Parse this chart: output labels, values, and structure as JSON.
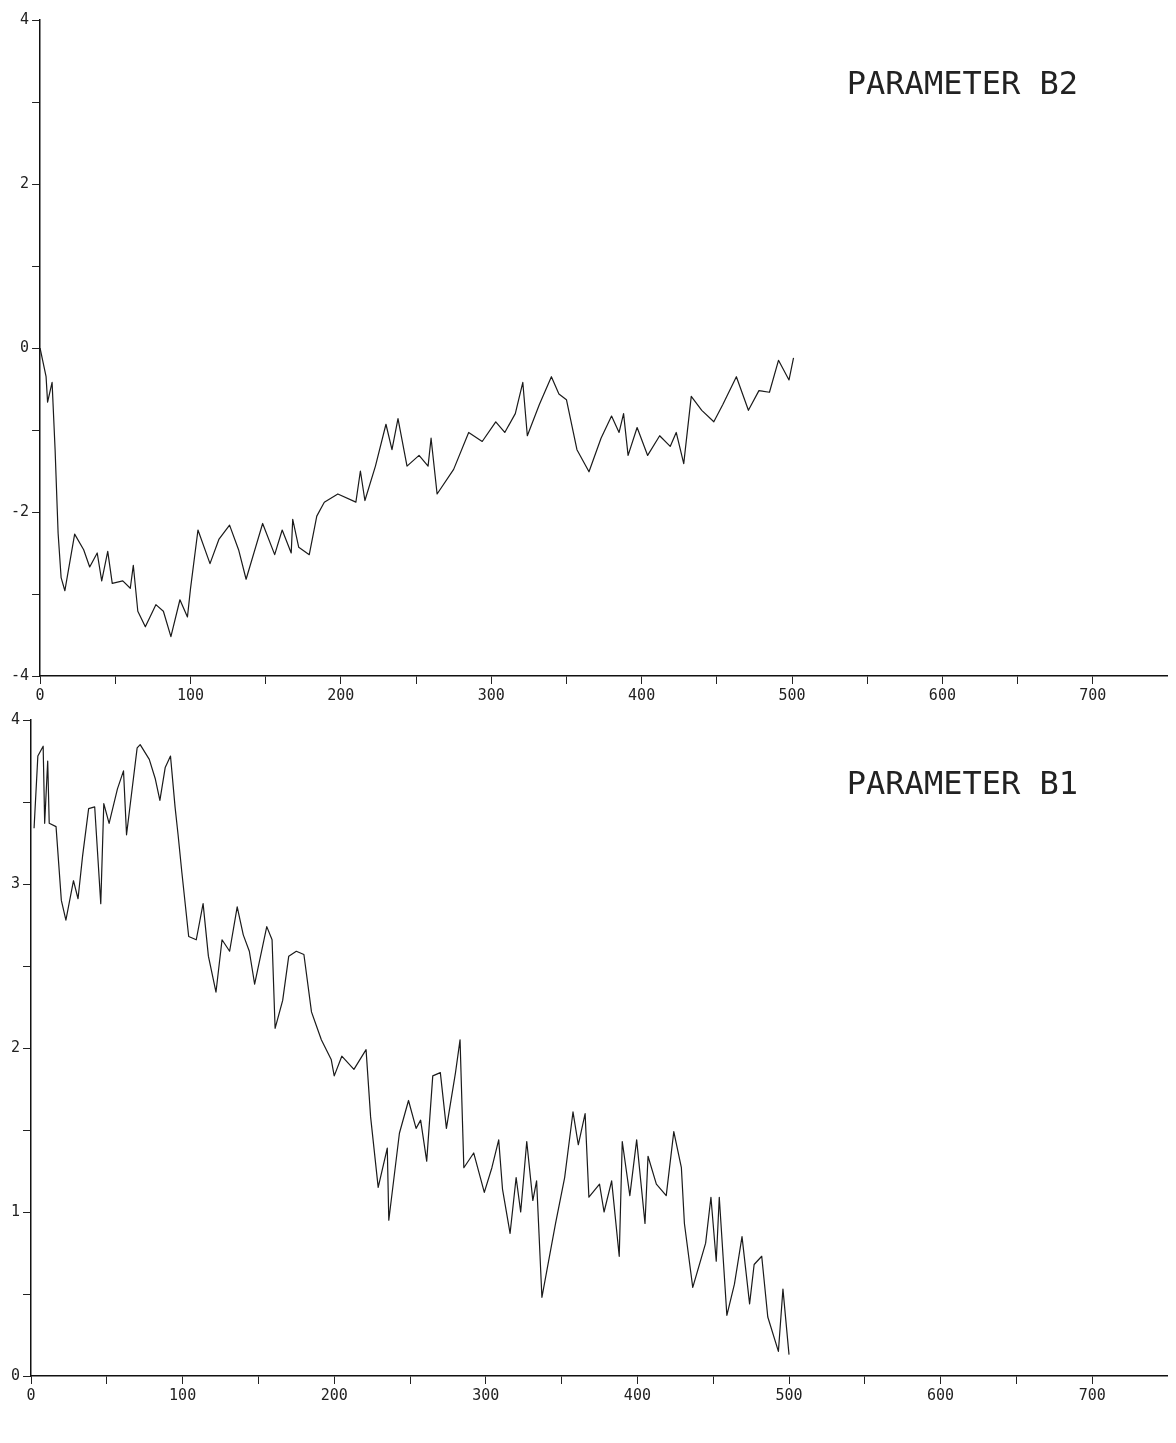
{
  "chart_data": [
    {
      "type": "line",
      "title": "PARAMETER B2",
      "xlim": [
        0,
        750
      ],
      "xticks": [
        0,
        {
          "value": 50,
          "label": null
        },
        100,
        {
          "value": 150,
          "label": null
        },
        200,
        {
          "value": 250,
          "label": null
        },
        300,
        {
          "value": 350,
          "label": null
        },
        400,
        {
          "value": 450,
          "label": null
        },
        500,
        {
          "value": 550,
          "label": null
        },
        600,
        {
          "value": 650,
          "label": null
        },
        700
      ],
      "ylim": [
        -4,
        4
      ],
      "yticks": [
        -4,
        {
          "value": -3,
          "label": null
        },
        -2,
        {
          "value": -1,
          "label": null
        },
        0,
        {
          "value": 1,
          "label": null
        },
        2,
        {
          "value": 3,
          "label": null
        },
        4
      ],
      "series": [
        {
          "color": "#1a1a1a",
          "x": [
            0,
            4,
            5,
            8,
            10,
            12,
            14,
            16.5,
            23,
            29,
            33,
            38,
            41,
            45,
            48,
            55,
            60,
            62,
            65,
            70,
            77,
            82,
            87,
            93,
            98,
            100,
            105,
            113,
            119,
            126,
            132,
            137,
            148,
            156,
            161,
            167,
            168,
            172,
            179,
            184,
            189,
            198,
            210,
            213,
            216,
            223,
            230,
            234,
            238,
            244,
            252,
            258,
            260,
            264,
            275,
            285,
            294,
            303,
            309,
            316,
            321,
            324,
            332,
            340,
            345,
            350,
            357,
            365,
            373,
            380,
            385,
            388,
            391,
            397,
            404,
            412,
            419,
            423,
            428,
            433,
            440,
            448,
            454,
            463,
            471,
            478,
            485,
            491,
            498,
            501
          ],
          "values": [
            0,
            -0.35,
            -0.66,
            -0.42,
            -1.24,
            -2.26,
            -2.8,
            -2.96,
            -2.27,
            -2.46,
            -2.67,
            -2.5,
            -2.84,
            -2.48,
            -2.87,
            -2.84,
            -2.93,
            -2.65,
            -3.21,
            -3.4,
            -3.13,
            -3.21,
            -3.52,
            -3.07,
            -3.28,
            -2.94,
            -2.22,
            -2.63,
            -2.33,
            -2.16,
            -2.46,
            -2.82,
            -2.14,
            -2.52,
            -2.22,
            -2.5,
            -2.09,
            -2.43,
            -2.52,
            -2.05,
            -1.88,
            -1.78,
            -1.88,
            -1.5,
            -1.86,
            -1.44,
            -0.93,
            -1.24,
            -0.86,
            -1.44,
            -1.31,
            -1.44,
            -1.1,
            -1.78,
            -1.48,
            -1.03,
            -1.14,
            -0.9,
            -1.03,
            -0.8,
            -0.42,
            -1.07,
            -0.69,
            -0.35,
            -0.56,
            -0.63,
            -1.24,
            -1.51,
            -1.1,
            -0.83,
            -1.03,
            -0.8,
            -1.31,
            -0.97,
            -1.31,
            -1.07,
            -1.2,
            -1.03,
            -1.41,
            -0.59,
            -0.76,
            -0.9,
            -0.69,
            -0.35,
            -0.76,
            -0.52,
            -0.54,
            -0.15,
            -0.39,
            -0.12
          ]
        }
      ]
    },
    {
      "type": "line",
      "title": "PARAMETER B1",
      "xlim": [
        0,
        750
      ],
      "xticks": [
        0,
        {
          "value": 50,
          "label": null
        },
        100,
        {
          "value": 150,
          "label": null
        },
        200,
        {
          "value": 250,
          "label": null
        },
        300,
        {
          "value": 350,
          "label": null
        },
        400,
        {
          "value": 450,
          "label": null
        },
        500,
        {
          "value": 550,
          "label": null
        },
        600,
        {
          "value": 650,
          "label": null
        },
        700
      ],
      "ylim": [
        0,
        4
      ],
      "yticks": [
        0,
        {
          "value": 0.5,
          "label": null
        },
        1,
        {
          "value": 1.5,
          "label": null
        },
        2,
        {
          "value": 2.5,
          "label": null
        },
        3,
        {
          "value": 3.5,
          "label": null
        },
        4
      ],
      "series": [
        {
          "color": "#1a1a1a",
          "x": [
            2,
            4.5,
            8,
            9,
            11,
            12,
            16.5,
            20,
            23,
            28,
            31,
            34,
            38,
            42,
            46,
            48,
            51.5,
            57,
            61,
            63,
            70,
            72,
            78,
            82,
            85,
            88.5,
            92,
            95,
            97,
            99.5,
            104,
            109,
            113.5,
            117,
            122,
            126,
            131,
            136,
            140,
            144,
            147.5,
            155.5,
            159,
            161,
            166,
            170,
            175,
            180,
            185,
            191.5,
            198,
            200,
            205,
            213,
            221,
            224,
            229,
            235,
            236,
            243,
            249,
            254,
            257,
            261,
            265,
            270,
            274,
            280,
            283,
            285.5,
            292,
            299,
            304,
            308.5,
            311,
            316,
            320,
            323,
            327,
            331,
            333.5,
            337,
            346,
            352,
            357.5,
            361,
            365.5,
            368,
            375,
            378,
            383,
            388,
            390,
            395,
            399.5,
            405,
            407,
            412.5,
            419,
            424,
            429,
            431,
            436.5,
            445,
            448.5,
            452,
            454,
            459,
            464,
            469,
            474,
            477,
            482,
            486,
            493,
            496,
            500
          ],
          "values": [
            3.34,
            3.78,
            3.84,
            3.37,
            3.75,
            3.37,
            3.35,
            2.9,
            2.78,
            3.02,
            2.91,
            3.17,
            3.46,
            3.47,
            2.88,
            3.49,
            3.37,
            3.58,
            3.69,
            3.3,
            3.83,
            3.85,
            3.76,
            3.64,
            3.51,
            3.71,
            3.78,
            3.47,
            3.3,
            3.07,
            2.68,
            2.66,
            2.88,
            2.56,
            2.34,
            2.66,
            2.59,
            2.86,
            2.69,
            2.59,
            2.39,
            2.74,
            2.66,
            2.12,
            2.29,
            2.56,
            2.59,
            2.57,
            2.22,
            2.05,
            1.93,
            1.83,
            1.95,
            1.87,
            1.99,
            1.58,
            1.15,
            1.39,
            0.95,
            1.48,
            1.68,
            1.51,
            1.56,
            1.31,
            1.83,
            1.85,
            1.51,
            1.85,
            2.05,
            1.27,
            1.36,
            1.12,
            1.27,
            1.44,
            1.14,
            0.87,
            1.21,
            1.0,
            1.43,
            1.07,
            1.19,
            0.48,
            0.93,
            1.21,
            1.61,
            1.41,
            1.6,
            1.09,
            1.17,
            1.0,
            1.19,
            0.73,
            1.43,
            1.1,
            1.44,
            0.93,
            1.34,
            1.17,
            1.1,
            1.49,
            1.27,
            0.93,
            0.54,
            0.81,
            1.09,
            0.7,
            1.09,
            0.37,
            0.56,
            0.85,
            0.44,
            0.68,
            0.73,
            0.36,
            0.15,
            0.53,
            0.13
          ]
        }
      ]
    }
  ]
}
